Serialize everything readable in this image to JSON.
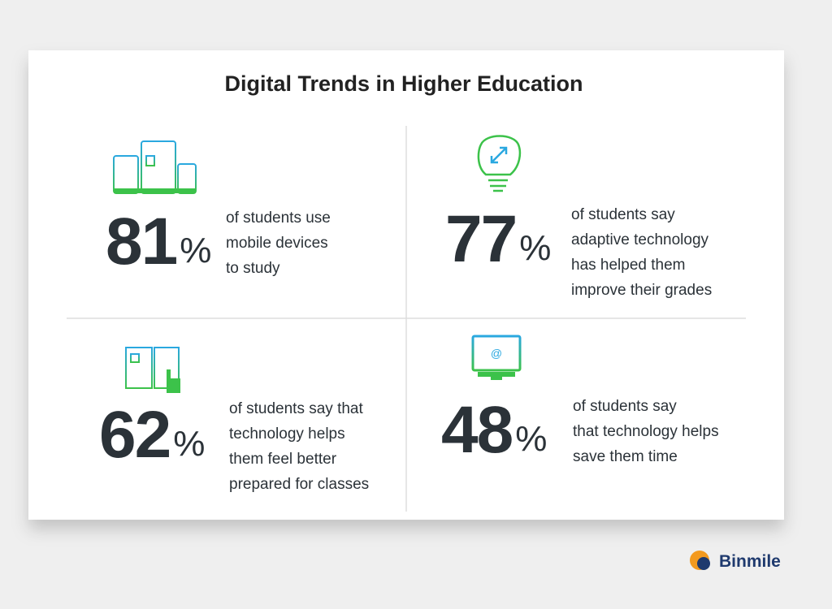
{
  "title": "Digital Trends in Higher Education",
  "stats": [
    {
      "value": 81,
      "unit": "%",
      "lines": [
        "of students use",
        "mobile devices",
        "to study"
      ]
    },
    {
      "value": 77,
      "unit": "%",
      "lines": [
        "of students say",
        "adaptive technology",
        "has helped them",
        "improve their grades"
      ]
    },
    {
      "value": 62,
      "unit": "%",
      "lines": [
        "of students say that",
        "technology helps",
        "them feel better",
        "prepared for classes"
      ]
    },
    {
      "value": 48,
      "unit": "%",
      "lines": [
        "of students say",
        "that technology helps",
        "save them time"
      ]
    }
  ],
  "brand": "Binmile"
}
